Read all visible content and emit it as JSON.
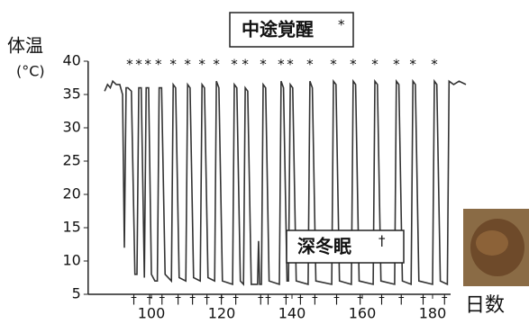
{
  "chart_data": {
    "type": "line",
    "title": "中途覚醒",
    "title_mark": "*",
    "torpor_label": "深冬眠",
    "torpor_mark": "†",
    "y_label": "体温",
    "y_unit": "(°C)",
    "x_label": "日数",
    "x": [
      86.7,
      87.5,
      88.3,
      89,
      90,
      91,
      91.8,
      92.3,
      92.8,
      93.3,
      94.3,
      95.3,
      95.9,
      96.4,
      97.1,
      98,
      98.5,
      99.2,
      100,
      101,
      101.7,
      102.2,
      102.9,
      103.9,
      105.7,
      106.2,
      106.9,
      107.9,
      109.8,
      110.3,
      111,
      112,
      113.9,
      114.4,
      115.1,
      116.1,
      118,
      118.5,
      119.2,
      120.2,
      123.1,
      123.6,
      124.3,
      125.3,
      126.2,
      126.7,
      127.4,
      128.4,
      130.2,
      130.5,
      130.8,
      131.3,
      131.8,
      132.5,
      133.5,
      136.4,
      136.9,
      137.6,
      138.6,
      139,
      139.5,
      140.2,
      141.2,
      144.6,
      145.1,
      145.8,
      146.8,
      151.3,
      151.8,
      152.5,
      153.5,
      156.9,
      157.4,
      158.1,
      159.1,
      163.1,
      163.6,
      164.3,
      165.3,
      169.2,
      169.7,
      170.4,
      171.4,
      173.9,
      174.4,
      175.1,
      176.1,
      180,
      180.5,
      181.2,
      182.2,
      184.2,
      184.7,
      186,
      187.5,
      189.5
    ],
    "values": [
      35.5,
      36.5,
      36,
      37,
      36.5,
      36.5,
      35,
      12,
      36,
      36,
      35.5,
      8,
      8,
      36,
      36,
      7.5,
      36,
      36,
      8,
      7,
      7,
      36,
      36,
      8,
      7,
      36.5,
      36,
      7.5,
      7,
      36.5,
      36,
      7.5,
      7,
      36.5,
      36,
      7.5,
      7,
      37,
      36,
      7,
      6.5,
      36.5,
      36,
      7,
      6.5,
      36,
      35.5,
      6.5,
      6.5,
      13,
      6.5,
      6.5,
      36.5,
      36,
      7,
      6.5,
      37,
      36,
      7,
      7,
      36.5,
      36,
      7,
      6.5,
      37,
      36,
      7,
      6.5,
      37,
      36.5,
      7,
      6.5,
      37,
      36.5,
      7,
      6.5,
      37,
      36.5,
      7,
      6.5,
      37,
      36.5,
      7,
      6.5,
      37,
      36.5,
      7,
      6.5,
      37,
      36.5,
      7,
      6.5,
      37,
      36.5,
      37,
      36.5
    ],
    "arousal_days": [
      93.8,
      96.4,
      99,
      102,
      106.2,
      110.3,
      114.4,
      118.5,
      123.6,
      126.7,
      131.8,
      136.9,
      139.5,
      145.1,
      151.8,
      157.4,
      163.6,
      169.7,
      174.4,
      180.5
    ],
    "torpor_days": [
      95,
      99.5,
      103,
      107.6,
      111.7,
      115.8,
      119.9,
      124,
      131.1,
      133.2,
      138.3,
      142.4,
      146.5,
      152.7,
      159.4,
      165.5,
      171.1,
      177.3,
      183.4
    ],
    "color": "#333333",
    "xlim": [
      82,
      190
    ],
    "xticks": [
      100,
      120,
      140,
      160,
      180
    ],
    "ylim": [
      5,
      40
    ],
    "yticks": [
      5,
      10,
      15,
      20,
      25,
      30,
      35,
      40
    ]
  }
}
